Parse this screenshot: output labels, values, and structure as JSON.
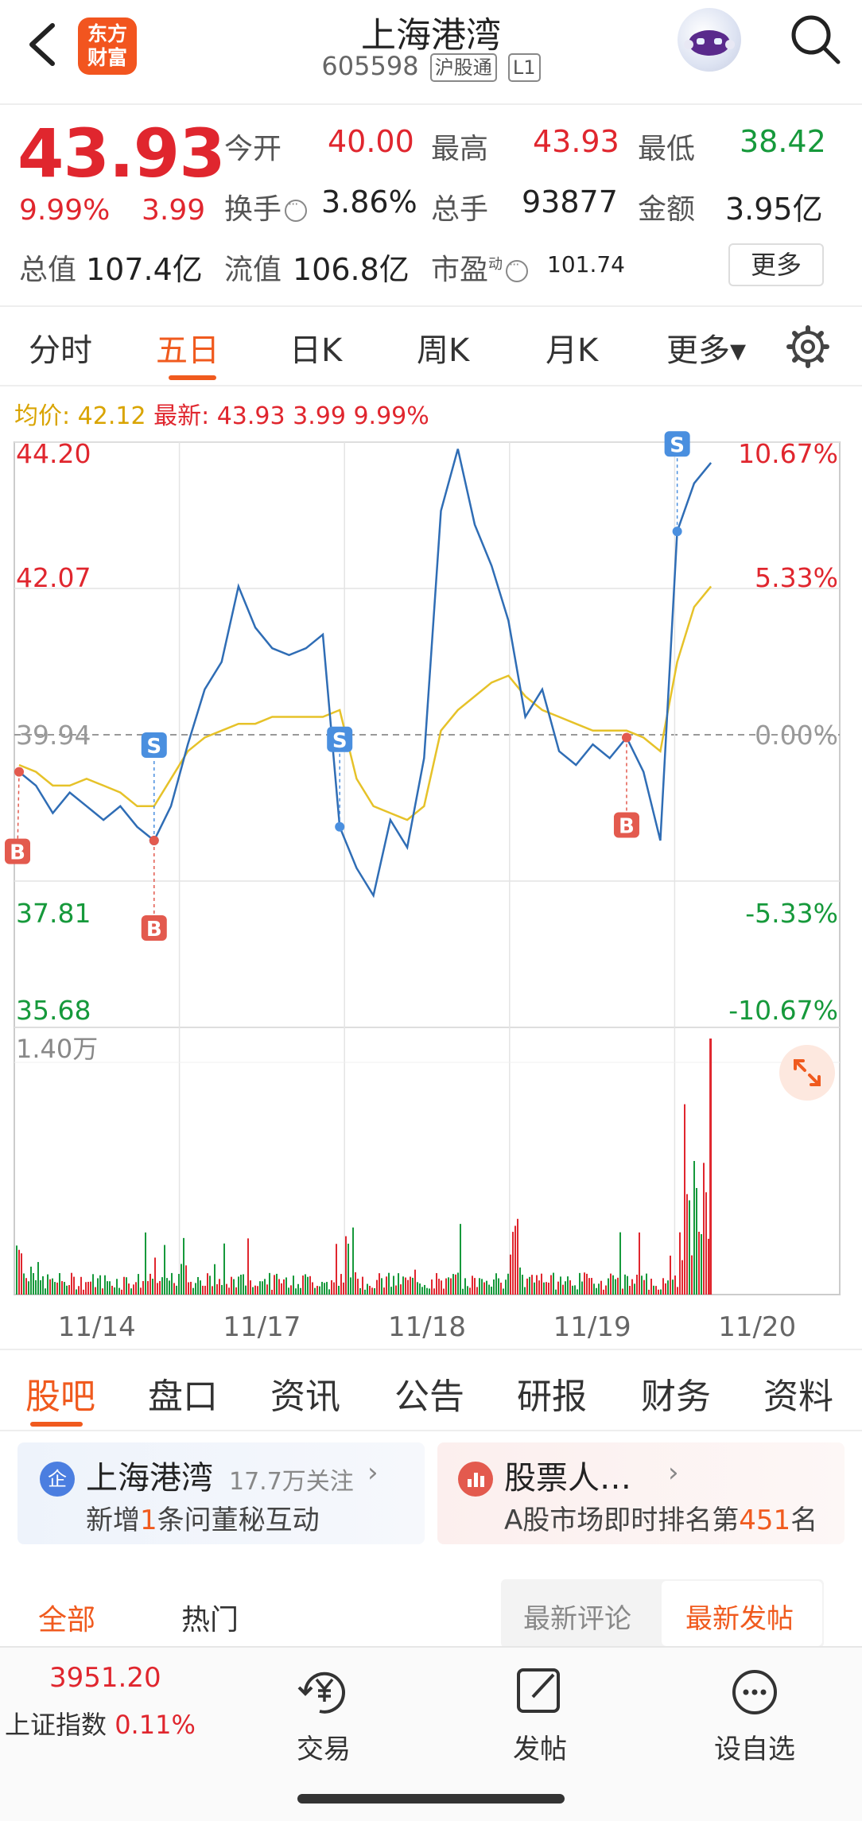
{
  "header": {
    "logo_line1": "东方",
    "logo_line2": "财富",
    "stock_name": "上海港湾",
    "stock_code": "605598",
    "tag_market": "沪股通",
    "tag_level": "L1"
  },
  "quote": {
    "price": "43.93",
    "change_pct": "9.99%",
    "change": "3.99",
    "open_label": "今开",
    "open": "40.00",
    "high_label": "最高",
    "high": "43.93",
    "low_label": "最低",
    "low": "38.42",
    "turnover_label": "换手",
    "turnover": "3.86%",
    "volume_label": "总手",
    "volume": "93877",
    "amount_label": "金额",
    "amount": "3.95亿",
    "mktcap_label": "总值",
    "mktcap": "107.4亿",
    "float_label": "流值",
    "float_cap": "106.8亿",
    "pe_label": "市盈",
    "pe_sup": "动",
    "pe": "101.74",
    "more": "更多"
  },
  "chart_tabs": [
    "分时",
    "五日",
    "日K",
    "周K",
    "月K",
    "更多▾"
  ],
  "legend": {
    "avg_label": "均价: 42.12",
    "latest_label": "最新: 43.93 3.99 9.99%"
  },
  "chart_data": {
    "type": "line",
    "title": "",
    "x_labels": [
      "11/14",
      "11/17",
      "11/18",
      "11/19",
      "11/20"
    ],
    "ylim": [
      35.68,
      44.2
    ],
    "y_ticks_left": [
      "44.20",
      "42.07",
      "39.94",
      "37.81",
      "35.68"
    ],
    "y_ticks_right": [
      "10.67%",
      "5.33%",
      "0.00%",
      "-5.33%",
      "-10.67%"
    ],
    "prev_close": 39.94,
    "series": [
      {
        "name": "",
        "values": [
          39.4,
          39.2,
          38.8,
          39.1,
          38.9,
          38.7,
          38.9,
          38.6,
          38.4,
          38.9,
          39.8,
          40.6,
          41.0,
          42.1,
          41.5,
          41.2,
          41.1,
          41.2,
          41.4,
          38.6,
          38.0,
          37.6,
          38.7,
          38.3,
          39.6,
          43.2,
          44.1,
          43.0,
          42.4,
          41.6,
          40.2,
          40.6,
          39.7,
          39.5,
          39.8,
          39.6,
          39.9,
          39.4,
          38.4,
          42.9,
          43.6,
          43.9
        ]
      },
      {
        "name": "",
        "values": [
          39.5,
          39.4,
          39.2,
          39.2,
          39.3,
          39.2,
          39.1,
          38.9,
          38.9,
          39.3,
          39.7,
          39.9,
          40.0,
          40.1,
          40.1,
          40.2,
          40.2,
          40.2,
          40.2,
          40.3,
          39.3,
          38.9,
          38.8,
          38.7,
          38.9,
          40.0,
          40.3,
          40.5,
          40.7,
          40.8,
          40.5,
          40.3,
          40.2,
          40.1,
          40.0,
          40.0,
          40.0,
          39.9,
          39.7,
          41.0,
          41.8,
          42.1
        ]
      }
    ],
    "volume_max_label": "1.40万",
    "trade_marks": [
      {
        "type": "B",
        "day": "11/14"
      },
      {
        "type": "S",
        "day": "11/14"
      },
      {
        "type": "B",
        "day": "11/14"
      },
      {
        "type": "S",
        "day": "11/17"
      },
      {
        "type": "B",
        "day": "11/19"
      },
      {
        "type": "S",
        "day": "11/19"
      }
    ]
  },
  "sub_tabs": [
    "股吧",
    "盘口",
    "资讯",
    "公告",
    "研报",
    "财务",
    "资料"
  ],
  "cards": {
    "company": {
      "icon": "企",
      "title": "上海港湾",
      "followers": "17.7万关注",
      "line_prefix": "新增",
      "line_num": "1",
      "line_suffix": "条问董秘互动"
    },
    "popularity": {
      "title": "股票人…",
      "line_prefix": "A股市场即时排名第",
      "line_num": "451",
      "line_suffix": "名"
    }
  },
  "filters": {
    "all": "全部",
    "hot": "热门",
    "latest_comment": "最新评论",
    "latest_post": "最新发帖"
  },
  "bottom_bar": {
    "index_value": "3951.20",
    "index_name": "上证指数",
    "index_pct": "0.11%",
    "trade": "交易",
    "post": "发帖",
    "watchlist": "设自选"
  }
}
